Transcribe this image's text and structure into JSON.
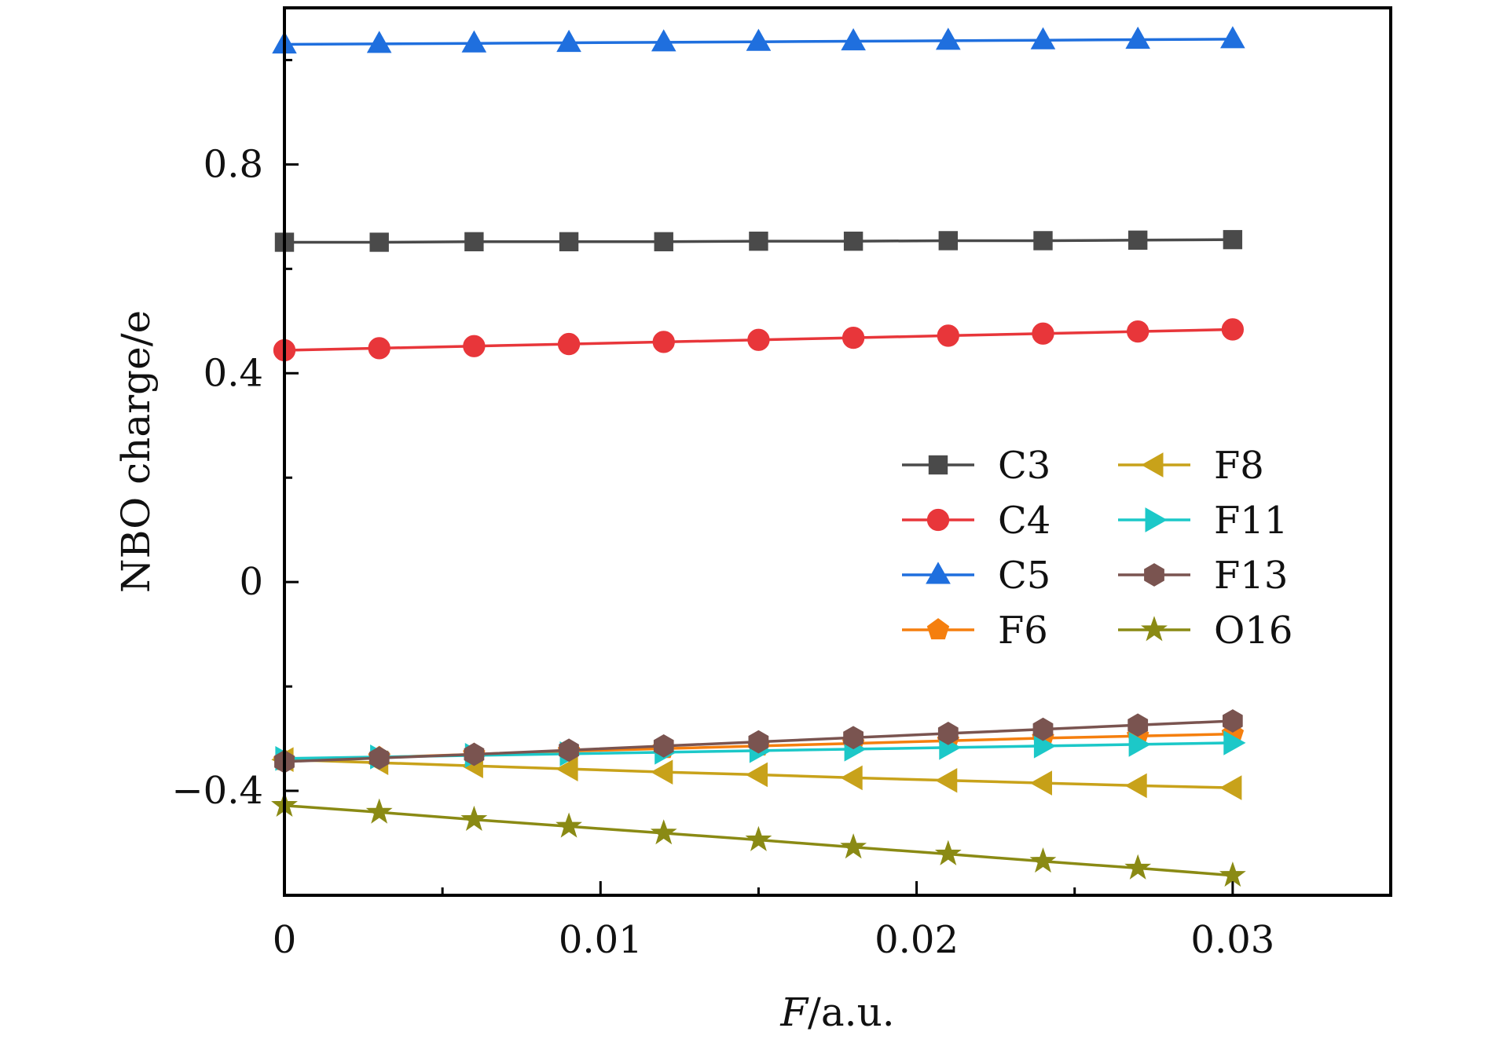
{
  "chart_data": {
    "type": "line",
    "title": "",
    "xlabel_italic": "F",
    "xlabel_rest": "/a.u.",
    "ylabel": "NBO charge/e",
    "xlim": [
      0,
      0.035
    ],
    "ylim": [
      -0.6,
      1.1
    ],
    "x_ticks": [
      0,
      0.01,
      0.02,
      0.03
    ],
    "x_tick_labels": [
      "0",
      "0.01",
      "0.02",
      "0.03"
    ],
    "x_minor_ticks": [
      0.005,
      0.015,
      0.025
    ],
    "y_ticks": [
      -0.4,
      0,
      0.4,
      0.8
    ],
    "y_tick_labels": [
      "−0.4",
      "0",
      "0.4",
      "0.8"
    ],
    "y_minor_ticks": [
      -0.2,
      0.2,
      0.6,
      1.0
    ],
    "x": [
      0,
      0.003,
      0.006,
      0.009,
      0.012,
      0.015,
      0.018,
      0.021,
      0.024,
      0.027,
      0.03
    ],
    "series": [
      {
        "name": "C3",
        "color": "#4a4a4a",
        "marker": "square",
        "values": [
          0.651,
          0.651,
          0.652,
          0.652,
          0.652,
          0.653,
          0.653,
          0.654,
          0.654,
          0.655,
          0.656
        ]
      },
      {
        "name": "C4",
        "color": "#e8363a",
        "marker": "circle",
        "values": [
          0.444,
          0.448,
          0.452,
          0.456,
          0.46,
          0.464,
          0.468,
          0.472,
          0.476,
          0.48,
          0.484
        ]
      },
      {
        "name": "C5",
        "color": "#1f6fde",
        "marker": "triangle-up",
        "values": [
          1.03,
          1.031,
          1.032,
          1.033,
          1.034,
          1.035,
          1.036,
          1.037,
          1.038,
          1.039,
          1.04
        ]
      },
      {
        "name": "F6",
        "color": "#f57f0e",
        "marker": "pentagon",
        "values": [
          -0.342,
          -0.336,
          -0.33,
          -0.324,
          -0.319,
          -0.314,
          -0.309,
          -0.304,
          -0.299,
          -0.295,
          -0.291
        ]
      },
      {
        "name": "F8",
        "color": "#c8a21a",
        "marker": "triangle-left",
        "values": [
          -0.34,
          -0.346,
          -0.352,
          -0.358,
          -0.364,
          -0.369,
          -0.375,
          -0.38,
          -0.385,
          -0.39,
          -0.394
        ]
      },
      {
        "name": "F11",
        "color": "#1cc8c8",
        "marker": "triangle-right",
        "values": [
          -0.338,
          -0.335,
          -0.332,
          -0.329,
          -0.326,
          -0.323,
          -0.32,
          -0.317,
          -0.314,
          -0.311,
          -0.308
        ]
      },
      {
        "name": "F13",
        "color": "#7a5450",
        "marker": "hexagon",
        "values": [
          -0.344,
          -0.337,
          -0.33,
          -0.322,
          -0.314,
          -0.306,
          -0.298,
          -0.29,
          -0.282,
          -0.274,
          -0.266
        ]
      },
      {
        "name": "O16",
        "color": "#8a8a14",
        "marker": "star",
        "values": [
          -0.428,
          -0.441,
          -0.455,
          -0.468,
          -0.481,
          -0.494,
          -0.508,
          -0.521,
          -0.535,
          -0.548,
          -0.562
        ]
      }
    ],
    "legend": {
      "placement": "center-right inside",
      "columns": 2
    },
    "grid": false
  }
}
